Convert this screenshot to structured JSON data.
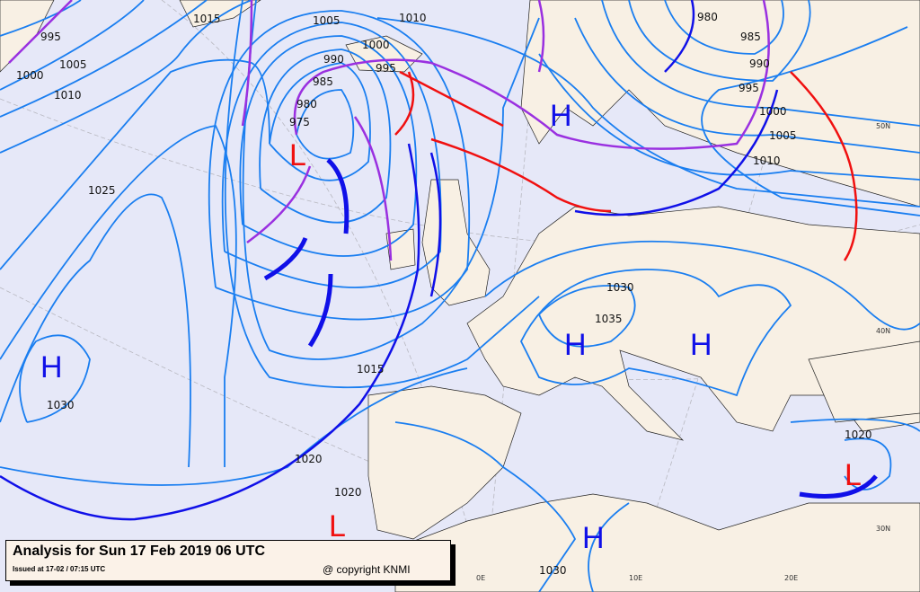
{
  "caption": {
    "title": "Analysis for Sun 17 Feb 2019 06 UTC",
    "issued": "Issued at 17-02 / 07:15 UTC",
    "copyright": "@ copyright KNMI"
  },
  "isobar_labels": [
    "995",
    "1000",
    "1005",
    "1010",
    "1015",
    "1005",
    "1010",
    "1000",
    "990",
    "995",
    "985",
    "980",
    "975",
    "1025",
    "1030",
    "1015",
    "1020",
    "1020",
    "1030",
    "1035",
    "1030",
    "1020",
    "980",
    "985",
    "990",
    "995",
    "1000",
    "1005",
    "1010"
  ],
  "pressure_centers": [
    {
      "type": "L",
      "color": "#f01010"
    },
    {
      "type": "H",
      "color": "#1010e8"
    },
    {
      "type": "H",
      "color": "#1010e8"
    },
    {
      "type": "H",
      "color": "#1010e8"
    },
    {
      "type": "H",
      "color": "#1010e8"
    },
    {
      "type": "L",
      "color": "#f01010"
    },
    {
      "type": "L",
      "color": "#f01010"
    },
    {
      "type": "H",
      "color": "#1010e8"
    }
  ],
  "graticule_labels": [
    "50N",
    "40N",
    "30N",
    "0E",
    "10E",
    "20E"
  ],
  "colors": {
    "isobar": "#1a7ef0",
    "cold_front": "#1010e8",
    "warm_front": "#f01010",
    "occluded_front": "#9a30e0",
    "sea": "#e6e8f8",
    "land": "#f8f0e4"
  }
}
